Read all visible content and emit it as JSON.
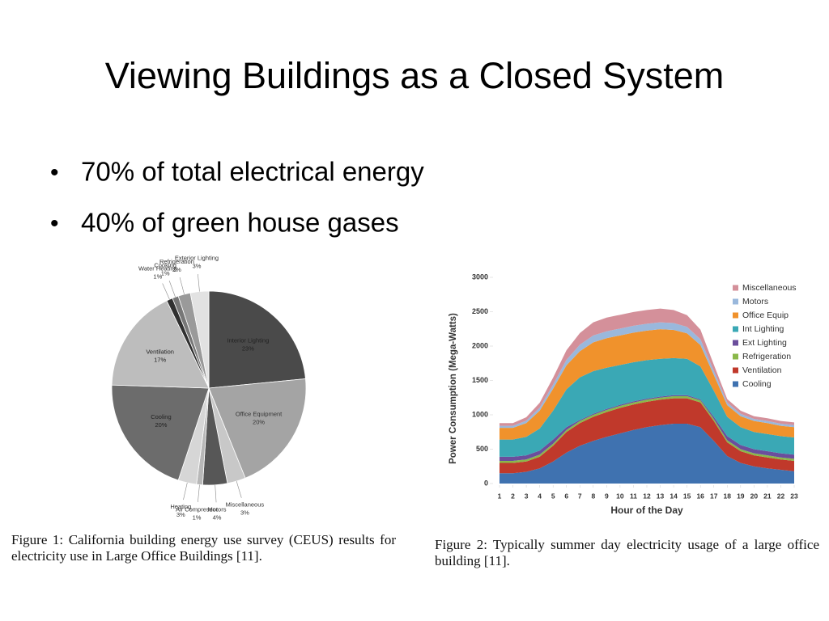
{
  "slide": {
    "title": "Viewing Buildings as a Closed System",
    "bullets": [
      "70% of total electrical energy",
      "40% of green house gases"
    ]
  },
  "chart_data": [
    {
      "type": "pie",
      "categories": [
        "Interior Lighting",
        "Office Equipment",
        "Miscellaneous",
        "Motors",
        "Air Compressor",
        "Heating",
        "Cooling",
        "Ventilation",
        "Water Heating",
        "Cooking",
        "Refrigeration",
        "Exterior Lighting"
      ],
      "values": [
        23,
        20,
        3,
        4,
        1,
        3,
        20,
        17,
        1,
        1,
        2,
        3
      ],
      "value_labels": [
        "23%",
        "20%",
        "3%",
        "4%",
        "1%",
        "3%",
        "20%",
        "17%",
        "1%",
        "1%",
        "2%",
        "3%"
      ],
      "colors": [
        "#4a4a4a",
        "#a4a4a4",
        "#c8c8c8",
        "#575757",
        "#b8b8b8",
        "#d6d6d6",
        "#6c6c6c",
        "#bdbdbd",
        "#303030",
        "#777777",
        "#9a9a9a",
        "#e2e2e2"
      ],
      "caption": "Figure 1: California building energy use survey (CEUS) results for electricity use in Large Office Buildings [11]."
    },
    {
      "type": "area",
      "stacked": true,
      "x": [
        1,
        2,
        3,
        4,
        5,
        6,
        7,
        8,
        9,
        10,
        11,
        12,
        13,
        14,
        15,
        16,
        17,
        18,
        19,
        20,
        21,
        22,
        23
      ],
      "xlim": [
        1,
        23
      ],
      "xticks": [
        1,
        2,
        3,
        4,
        5,
        6,
        7,
        8,
        9,
        10,
        11,
        12,
        13,
        14,
        15,
        16,
        17,
        18,
        19,
        20,
        21,
        22,
        23
      ],
      "ylim": [
        0,
        3000
      ],
      "yticks": [
        0,
        500,
        1000,
        1500,
        2000,
        2500,
        3000
      ],
      "xlabel": "Hour of the Day",
      "ylabel": "Power Consumption (Mega-Watts)",
      "legend": "upper right",
      "series": [
        {
          "name": "Cooling",
          "color": "#3f72b0",
          "values": [
            150,
            150,
            170,
            220,
            320,
            450,
            550,
            620,
            680,
            730,
            780,
            820,
            850,
            870,
            870,
            820,
            620,
            400,
            300,
            250,
            220,
            200,
            180
          ]
        },
        {
          "name": "Ventilation",
          "color": "#c0392b",
          "values": [
            150,
            150,
            150,
            170,
            230,
            300,
            330,
            350,
            360,
            370,
            370,
            370,
            370,
            370,
            370,
            360,
            290,
            200,
            170,
            160,
            160,
            150,
            150
          ]
        },
        {
          "name": "Refrigeration",
          "color": "#8ab84a",
          "values": [
            30,
            30,
            30,
            30,
            30,
            30,
            30,
            30,
            30,
            30,
            30,
            30,
            30,
            30,
            30,
            30,
            30,
            30,
            30,
            30,
            30,
            30,
            30
          ]
        },
        {
          "name": "Ext Lighting",
          "color": "#6b4e9c",
          "values": [
            60,
            60,
            60,
            60,
            60,
            40,
            15,
            15,
            15,
            15,
            15,
            15,
            15,
            15,
            15,
            15,
            30,
            60,
            60,
            60,
            60,
            60,
            60
          ]
        },
        {
          "name": "Int Lighting",
          "color": "#3aa8b5",
          "values": [
            250,
            250,
            270,
            320,
            420,
            550,
            620,
            620,
            600,
            580,
            570,
            560,
            550,
            540,
            530,
            480,
            380,
            280,
            260,
            250,
            250,
            250,
            250
          ]
        },
        {
          "name": "Office Equip",
          "color": "#f0922c",
          "values": [
            170,
            170,
            200,
            260,
            320,
            350,
            380,
            420,
            430,
            430,
            430,
            430,
            430,
            410,
            370,
            310,
            230,
            170,
            160,
            160,
            160,
            150,
            150
          ]
        },
        {
          "name": "Motors",
          "color": "#9ab8dc",
          "values": [
            30,
            30,
            35,
            45,
            60,
            80,
            95,
            100,
            100,
            100,
            100,
            100,
            100,
            100,
            95,
            85,
            60,
            40,
            35,
            30,
            30,
            30,
            30
          ]
        },
        {
          "name": "Miscellaneous",
          "color": "#d4909a",
          "values": [
            40,
            40,
            50,
            70,
            100,
            140,
            170,
            190,
            200,
            200,
            200,
            200,
            200,
            190,
            170,
            140,
            90,
            50,
            45,
            40,
            40,
            40,
            40
          ]
        }
      ],
      "caption": "Figure 2: Typically summer day electricity usage of a large office building [11]."
    }
  ]
}
